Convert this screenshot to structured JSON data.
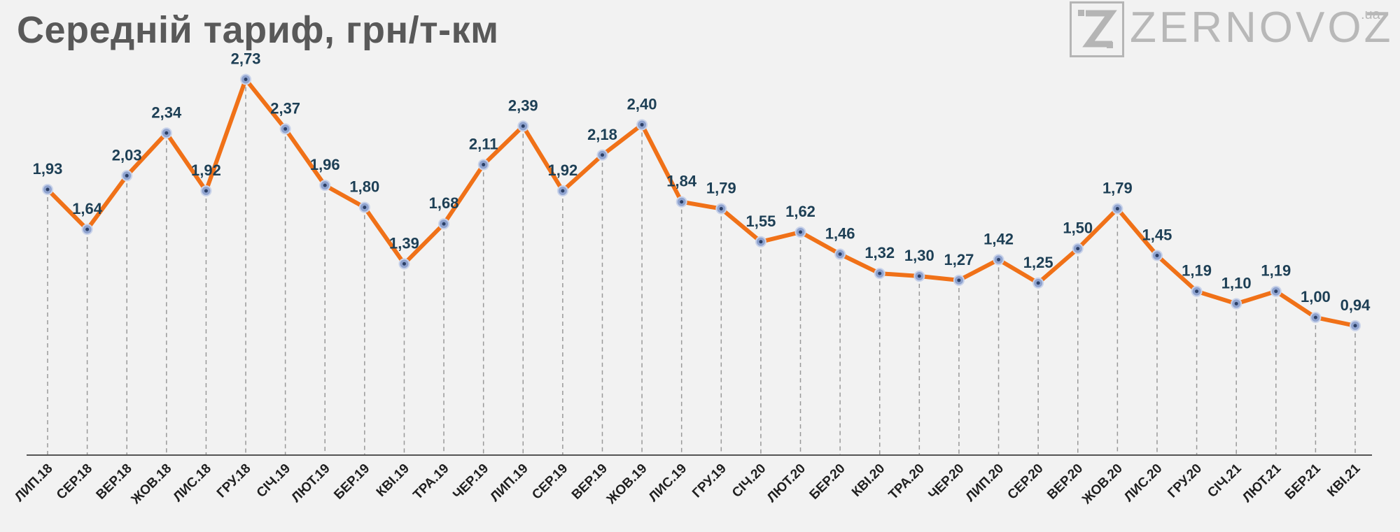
{
  "title": "Середній тариф, грн/т-км",
  "logo": {
    "brand": "ZERNOVOZ",
    "suffix": ".ua",
    "mark": "Z"
  },
  "colors": {
    "line": "#f07118",
    "marker": "#8fa3cf",
    "label": "#1d3f55",
    "grid": "#999999"
  },
  "chart_data": {
    "type": "line",
    "title": "Середній тариф, грн/т-км",
    "xlabel": "",
    "ylabel": "",
    "ylim": [
      0,
      2.9
    ],
    "categories": [
      "ЛИП.18",
      "СЕР.18",
      "ВЕР.18",
      "ЖОВ.18",
      "ЛИС.18",
      "ГРУ.18",
      "СІЧ.19",
      "ЛЮТ.19",
      "БЕР.19",
      "КВІ.19",
      "ТРА.19",
      "ЧЕР.19",
      "ЛИП.19",
      "СЕР.19",
      "ВЕР.19",
      "ЖОВ.19",
      "ЛИС.19",
      "ГРУ.19",
      "СІЧ.20",
      "ЛЮТ.20",
      "БЕР.20",
      "КВІ.20",
      "ТРА.20",
      "ЧЕР.20",
      "ЛИП.20",
      "СЕР.20",
      "ВЕР.20",
      "ЖОВ.20",
      "ЛИС.20",
      "ГРУ.20",
      "СІЧ.21",
      "ЛЮТ.21",
      "БЕР.21",
      "КВІ.21"
    ],
    "values": [
      1.93,
      1.64,
      2.03,
      2.34,
      1.92,
      2.73,
      2.37,
      1.96,
      1.8,
      1.39,
      1.68,
      2.11,
      2.39,
      1.92,
      2.18,
      2.4,
      1.84,
      1.79,
      1.55,
      1.62,
      1.46,
      1.32,
      1.3,
      1.27,
      1.42,
      1.25,
      1.5,
      1.79,
      1.45,
      1.19,
      1.1,
      1.19,
      1.0,
      0.94
    ],
    "labels": [
      "1,93",
      "1,64",
      "2,03",
      "2,34",
      "1,92",
      "2,73",
      "2,37",
      "1,96",
      "1,80",
      "1,39",
      "1,68",
      "2,11",
      "2,39",
      "1,92",
      "2,18",
      "2,40",
      "1,84",
      "1,79",
      "1,55",
      "1,62",
      "1,46",
      "1,32",
      "1,30",
      "1,27",
      "1,42",
      "1,25",
      "1,50",
      "1,79",
      "1,45",
      "1,19",
      "1,10",
      "1,19",
      "1,00",
      "0,94"
    ],
    "grid": "vertical dashed drop lines",
    "legend": "none"
  }
}
